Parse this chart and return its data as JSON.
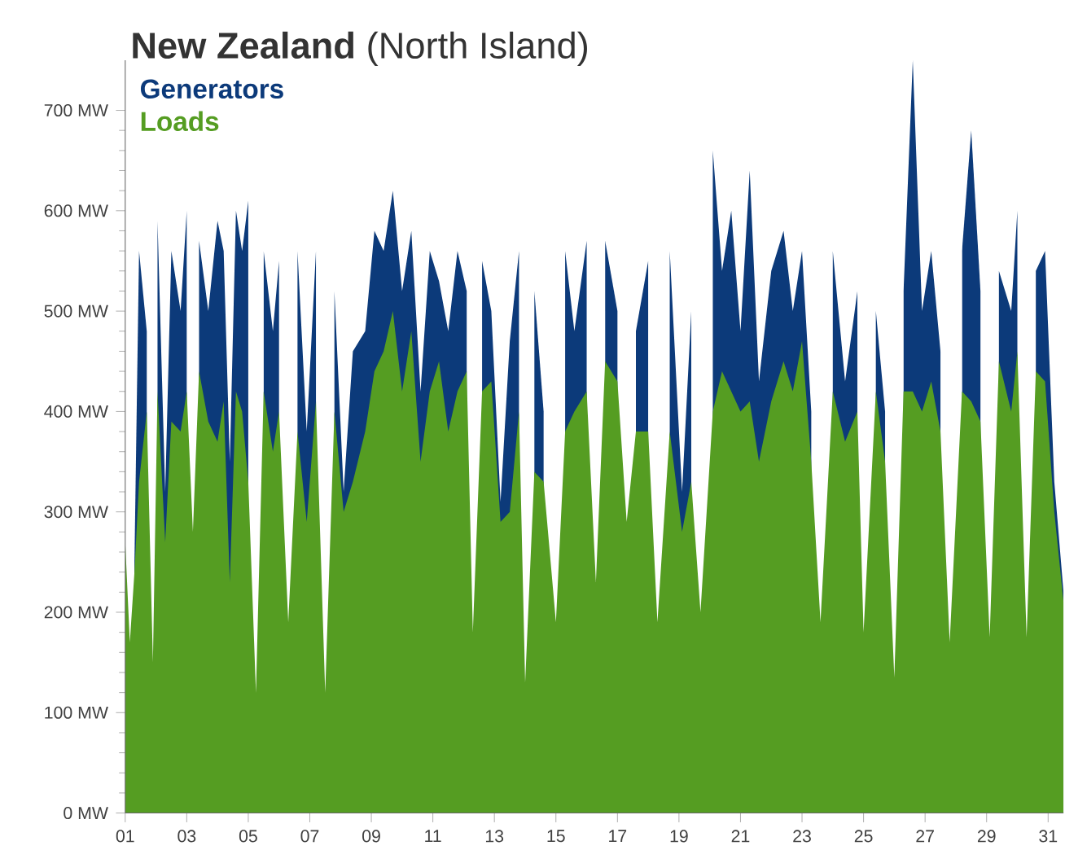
{
  "chart_data": {
    "type": "area",
    "title": "**New Zealand** (North Island)",
    "legend": "top left",
    "marker": "none",
    "xlim": [
      1,
      31.5
    ],
    "xticks": [
      {
        "value": 1,
        "label": "01"
      },
      {
        "value": 3,
        "label": "03"
      },
      {
        "value": 5,
        "label": "05"
      },
      {
        "value": 7,
        "label": "07"
      },
      {
        "value": 9,
        "label": "09"
      },
      {
        "value": 11,
        "label": "11"
      },
      {
        "value": 13,
        "label": "13"
      },
      {
        "value": 15,
        "label": "15"
      },
      {
        "value": 17,
        "label": "17"
      },
      {
        "value": 19,
        "label": "19"
      },
      {
        "value": 21,
        "label": "21"
      },
      {
        "value": 23,
        "label": "23"
      },
      {
        "value": 25,
        "label": "25"
      },
      {
        "value": 27,
        "label": "27"
      },
      {
        "value": 29,
        "label": "29"
      },
      {
        "value": 31,
        "label": "31"
      }
    ],
    "ylim": [
      0,
      750
    ],
    "yticks": [
      {
        "value": 0,
        "label": "0 MW"
      },
      {
        "value": 100,
        "label": "100 MW"
      },
      {
        "value": 200,
        "label": "200 MW"
      },
      {
        "value": 300,
        "label": "300 MW"
      },
      {
        "value": 400,
        "label": "400 MW"
      },
      {
        "value": 500,
        "label": "500 MW"
      },
      {
        "value": 600,
        "label": "600 MW"
      },
      {
        "value": 700,
        "label": "700 MW"
      }
    ],
    "x": [
      1.0,
      1.15,
      1.3,
      1.45,
      1.7,
      1.9,
      2.05,
      2.3,
      2.5,
      2.8,
      3.0,
      3.2,
      3.4,
      3.7,
      4.0,
      4.2,
      4.4,
      4.6,
      4.8,
      5.0,
      5.25,
      5.5,
      5.8,
      6.0,
      6.3,
      6.6,
      6.9,
      7.2,
      7.5,
      7.8,
      8.1,
      8.4,
      8.8,
      9.1,
      9.4,
      9.7,
      10.0,
      10.3,
      10.6,
      10.9,
      11.2,
      11.5,
      11.8,
      12.1,
      12.3,
      12.6,
      12.9,
      13.2,
      13.5,
      13.8,
      14.0,
      14.3,
      14.6,
      15.0,
      15.3,
      15.6,
      16.0,
      16.3,
      16.6,
      17.0,
      17.3,
      17.6,
      18.0,
      18.3,
      18.7,
      19.1,
      19.4,
      19.7,
      20.1,
      20.4,
      20.7,
      21.0,
      21.3,
      21.6,
      22.0,
      22.4,
      22.7,
      23.0,
      23.3,
      23.6,
      24.0,
      24.4,
      24.8,
      25.0,
      25.4,
      25.7,
      26.0,
      26.3,
      26.6,
      26.9,
      27.2,
      27.5,
      27.8,
      28.2,
      28.5,
      28.8,
      29.1,
      29.4,
      29.8,
      30.0,
      30.3,
      30.6,
      30.9,
      31.2,
      31.5
    ],
    "series": [
      {
        "name": "Generators",
        "color": "#0c3a7a",
        "values": [
          null,
          null,
          250,
          560,
          480,
          null,
          590,
          320,
          560,
          500,
          600,
          null,
          570,
          500,
          590,
          560,
          350,
          600,
          560,
          610,
          null,
          560,
          480,
          550,
          null,
          560,
          380,
          560,
          null,
          520,
          320,
          460,
          480,
          580,
          560,
          620,
          520,
          580,
          420,
          560,
          530,
          480,
          560,
          520,
          null,
          550,
          500,
          310,
          470,
          560,
          null,
          520,
          400,
          null,
          560,
          480,
          570,
          null,
          570,
          500,
          null,
          480,
          550,
          null,
          560,
          320,
          500,
          null,
          660,
          540,
          600,
          480,
          640,
          430,
          540,
          580,
          500,
          560,
          400,
          null,
          560,
          430,
          520,
          null,
          500,
          400,
          null,
          520,
          750,
          500,
          560,
          460,
          null,
          560,
          680,
          520,
          null,
          540,
          500,
          600,
          null,
          540,
          560,
          330,
          220
        ]
      },
      {
        "name": "Loads",
        "color": "#559d22",
        "values": [
          270,
          170,
          240,
          330,
          400,
          150,
          420,
          270,
          390,
          380,
          420,
          280,
          440,
          390,
          370,
          410,
          230,
          420,
          400,
          330,
          120,
          420,
          360,
          400,
          190,
          380,
          290,
          410,
          120,
          400,
          300,
          330,
          380,
          440,
          460,
          500,
          420,
          480,
          350,
          420,
          450,
          380,
          420,
          440,
          180,
          420,
          430,
          290,
          300,
          400,
          130,
          340,
          330,
          190,
          380,
          400,
          420,
          230,
          450,
          430,
          290,
          380,
          380,
          190,
          380,
          280,
          330,
          200,
          400,
          440,
          420,
          400,
          410,
          350,
          410,
          450,
          420,
          470,
          350,
          190,
          420,
          370,
          400,
          180,
          420,
          350,
          135,
          420,
          420,
          400,
          430,
          380,
          170,
          420,
          410,
          390,
          175,
          450,
          400,
          460,
          175,
          440,
          430,
          300,
          210
        ]
      }
    ]
  }
}
